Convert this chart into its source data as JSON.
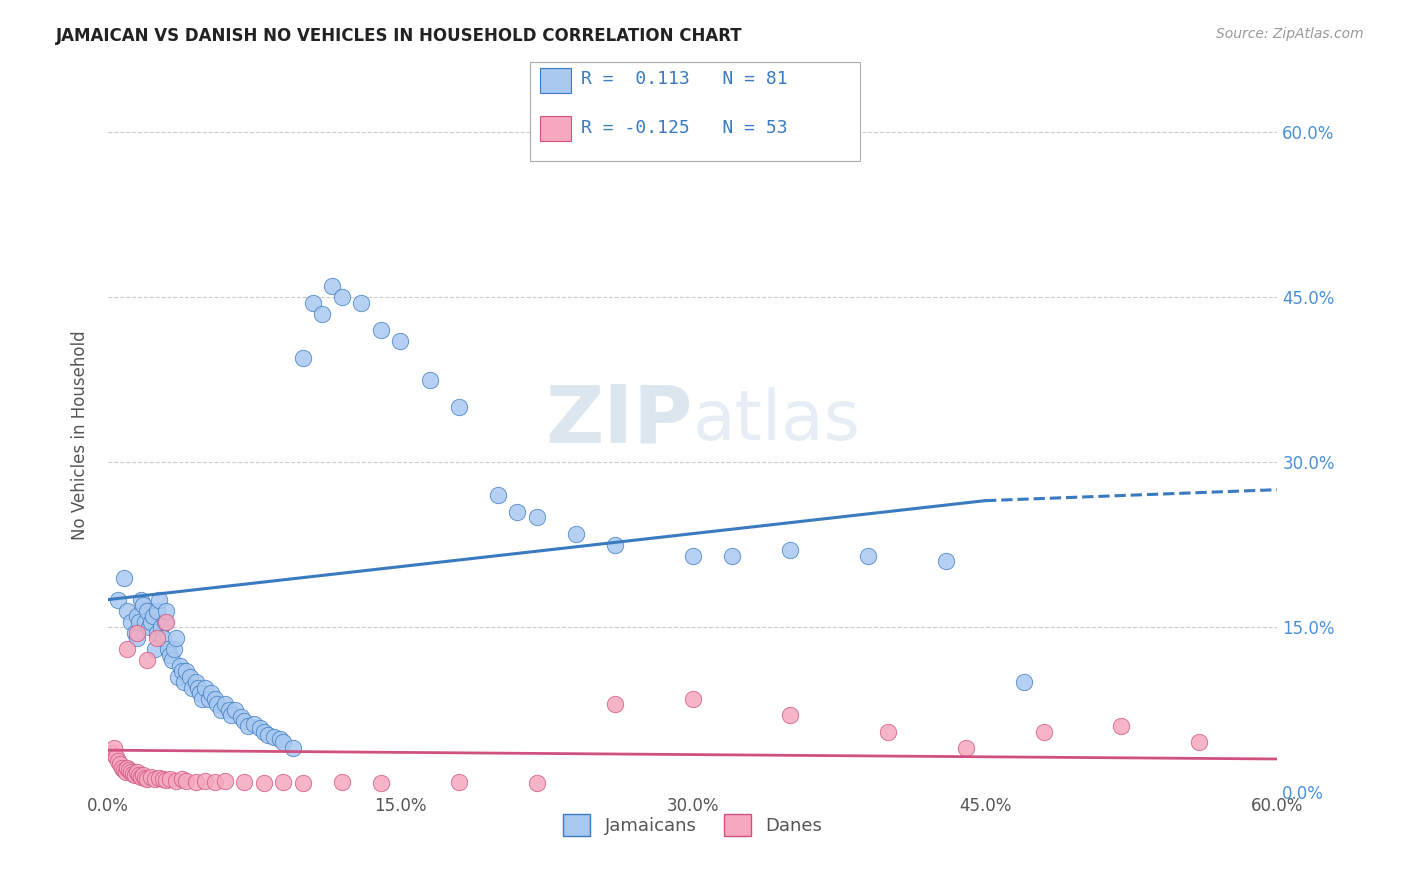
{
  "title": "JAMAICAN VS DANISH NO VEHICLES IN HOUSEHOLD CORRELATION CHART",
  "source": "Source: ZipAtlas.com",
  "ylabel": "No Vehicles in Household",
  "xlim": [
    0.0,
    0.6
  ],
  "ylim": [
    0.0,
    0.65
  ],
  "xtick_labels": [
    "0.0%",
    "15.0%",
    "30.0%",
    "45.0%",
    "60.0%"
  ],
  "xtick_vals": [
    0.0,
    0.15,
    0.3,
    0.45,
    0.6
  ],
  "ytick_labels_right": [
    "60.0%",
    "45.0%",
    "30.0%",
    "15.0%",
    "0.0%"
  ],
  "ytick_vals": [
    0.6,
    0.45,
    0.3,
    0.15,
    0.0
  ],
  "legend_label1": "Jamaicans",
  "legend_label2": "Danes",
  "color_jamaican": "#A8C8F0",
  "color_danish": "#F5A8BE",
  "color_line_jamaican": "#3A7ABF",
  "color_line_danish": "#D05080",
  "watermark_zip": "ZIP",
  "watermark_atlas": "atlas",
  "background_color": "#FFFFFF",
  "jamaican_x": [
    0.005,
    0.008,
    0.01,
    0.012,
    0.014,
    0.015,
    0.015,
    0.016,
    0.017,
    0.018,
    0.019,
    0.02,
    0.021,
    0.022,
    0.023,
    0.024,
    0.025,
    0.025,
    0.026,
    0.027,
    0.028,
    0.029,
    0.03,
    0.031,
    0.032,
    0.033,
    0.034,
    0.035,
    0.036,
    0.037,
    0.038,
    0.039,
    0.04,
    0.042,
    0.043,
    0.045,
    0.046,
    0.047,
    0.048,
    0.05,
    0.052,
    0.053,
    0.055,
    0.056,
    0.058,
    0.06,
    0.062,
    0.063,
    0.065,
    0.068,
    0.07,
    0.072,
    0.075,
    0.078,
    0.08,
    0.082,
    0.085,
    0.088,
    0.09,
    0.095,
    0.1,
    0.105,
    0.11,
    0.115,
    0.12,
    0.13,
    0.14,
    0.15,
    0.165,
    0.18,
    0.2,
    0.21,
    0.22,
    0.24,
    0.26,
    0.3,
    0.32,
    0.35,
    0.39,
    0.43,
    0.47
  ],
  "jamaican_y": [
    0.175,
    0.195,
    0.165,
    0.155,
    0.145,
    0.16,
    0.14,
    0.155,
    0.175,
    0.17,
    0.155,
    0.165,
    0.15,
    0.155,
    0.16,
    0.13,
    0.145,
    0.165,
    0.175,
    0.15,
    0.14,
    0.155,
    0.165,
    0.13,
    0.125,
    0.12,
    0.13,
    0.14,
    0.105,
    0.115,
    0.11,
    0.1,
    0.11,
    0.105,
    0.095,
    0.1,
    0.095,
    0.09,
    0.085,
    0.095,
    0.085,
    0.09,
    0.085,
    0.08,
    0.075,
    0.08,
    0.075,
    0.07,
    0.075,
    0.068,
    0.065,
    0.06,
    0.062,
    0.058,
    0.055,
    0.052,
    0.05,
    0.048,
    0.045,
    0.04,
    0.395,
    0.445,
    0.435,
    0.46,
    0.45,
    0.445,
    0.42,
    0.41,
    0.375,
    0.35,
    0.27,
    0.255,
    0.25,
    0.235,
    0.225,
    0.215,
    0.215,
    0.22,
    0.215,
    0.21,
    0.1
  ],
  "danish_x": [
    0.002,
    0.003,
    0.004,
    0.005,
    0.006,
    0.007,
    0.008,
    0.009,
    0.01,
    0.011,
    0.012,
    0.013,
    0.014,
    0.015,
    0.016,
    0.017,
    0.018,
    0.019,
    0.02,
    0.022,
    0.024,
    0.026,
    0.028,
    0.03,
    0.032,
    0.035,
    0.038,
    0.04,
    0.045,
    0.05,
    0.055,
    0.06,
    0.07,
    0.08,
    0.09,
    0.1,
    0.12,
    0.14,
    0.18,
    0.22,
    0.26,
    0.3,
    0.35,
    0.4,
    0.44,
    0.48,
    0.52,
    0.56,
    0.01,
    0.015,
    0.02,
    0.025,
    0.03
  ],
  "danish_y": [
    0.035,
    0.04,
    0.032,
    0.028,
    0.025,
    0.022,
    0.02,
    0.018,
    0.022,
    0.02,
    0.018,
    0.016,
    0.015,
    0.018,
    0.015,
    0.014,
    0.015,
    0.013,
    0.012,
    0.014,
    0.012,
    0.013,
    0.012,
    0.011,
    0.012,
    0.01,
    0.012,
    0.01,
    0.009,
    0.01,
    0.009,
    0.01,
    0.009,
    0.008,
    0.009,
    0.008,
    0.009,
    0.008,
    0.009,
    0.008,
    0.08,
    0.085,
    0.07,
    0.055,
    0.04,
    0.055,
    0.06,
    0.045,
    0.13,
    0.145,
    0.12,
    0.14,
    0.155
  ]
}
